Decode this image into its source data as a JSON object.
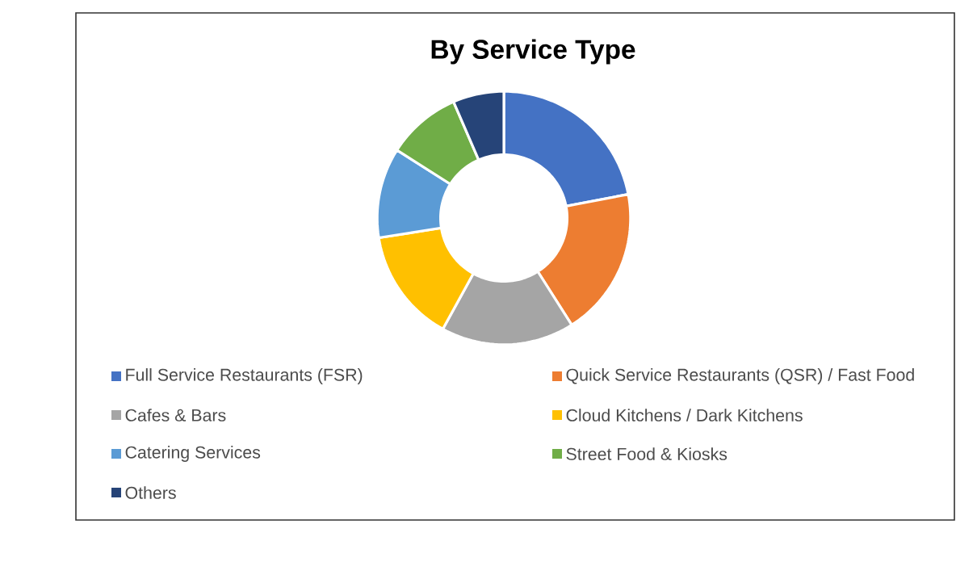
{
  "chart_data": {
    "type": "donut",
    "title": "By Service Type",
    "categories": [
      "Full Service Restaurants (FSR)",
      "Quick Service Restaurants (QSR) / Fast Food",
      "Cafes & Bars",
      "Cloud Kitchens / Dark Kitchens",
      "Catering Services",
      "Street Food & Kiosks",
      "Others"
    ],
    "values": [
      22,
      19,
      17,
      14.5,
      11.5,
      9.5,
      6.5
    ],
    "colors": [
      "#4472c4",
      "#ed7d31",
      "#a5a5a5",
      "#ffc000",
      "#5b9bd5",
      "#70ad47",
      "#264478"
    ],
    "legend": "bottom"
  }
}
